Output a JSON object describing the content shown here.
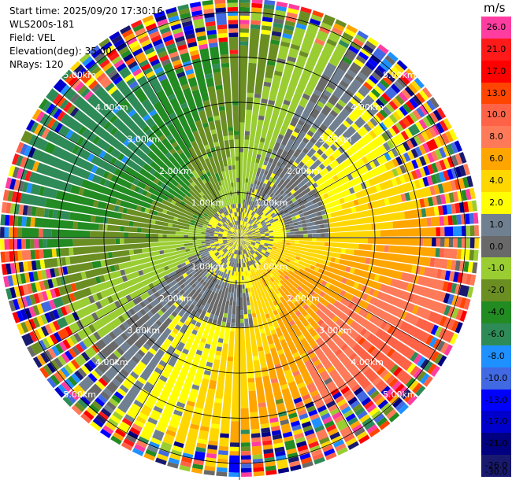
{
  "header": {
    "start_time": "Start time: 2025/09/20 17:30:16",
    "instrument": "WLS200s-181",
    "field": "Field: VEL",
    "elevation": "Elevation(deg): 35.00",
    "nrays": "NRays: 120"
  },
  "colorbar": {
    "unit": "m/s",
    "segments": [
      {
        "label": "26.0",
        "color": "#ff3ca0"
      },
      {
        "label": "21.0",
        "color": "#ff1a1a"
      },
      {
        "label": "17.0",
        "color": "#ff0000"
      },
      {
        "label": "13.0",
        "color": "#ff4500"
      },
      {
        "label": "10.0",
        "color": "#ff6347"
      },
      {
        "label": "8.0",
        "color": "#ff7a59"
      },
      {
        "label": "6.0",
        "color": "#ffa500"
      },
      {
        "label": "4.0",
        "color": "#ffd700"
      },
      {
        "label": "2.0",
        "color": "#ffff00"
      },
      {
        "label": "1.0",
        "color": "#708090"
      },
      {
        "label": "0.0",
        "color": "#696969"
      },
      {
        "label": "-1.0",
        "color": "#9acd32"
      },
      {
        "label": "-2.0",
        "color": "#6b8e23"
      },
      {
        "label": "-4.0",
        "color": "#228b22"
      },
      {
        "label": "-6.0",
        "color": "#2e8b57"
      },
      {
        "label": "-8.0",
        "color": "#1e90ff"
      },
      {
        "label": "-10.0",
        "color": "#4169e1"
      },
      {
        "label": "-13.0",
        "color": "#0000ff"
      },
      {
        "label": "-17.0",
        "color": "#0000cd"
      },
      {
        "label": "-21.0",
        "color": "#000080"
      },
      {
        "label": "-26.0",
        "color": "#191970"
      }
    ],
    "bottom_label": "-30.0"
  },
  "ppi": {
    "range_rings_km": [
      1,
      2,
      3,
      4,
      5
    ],
    "ring_labels": [
      "1.00km",
      "2.00km",
      "3.00km",
      "4.00km",
      "5.00km"
    ]
  }
}
